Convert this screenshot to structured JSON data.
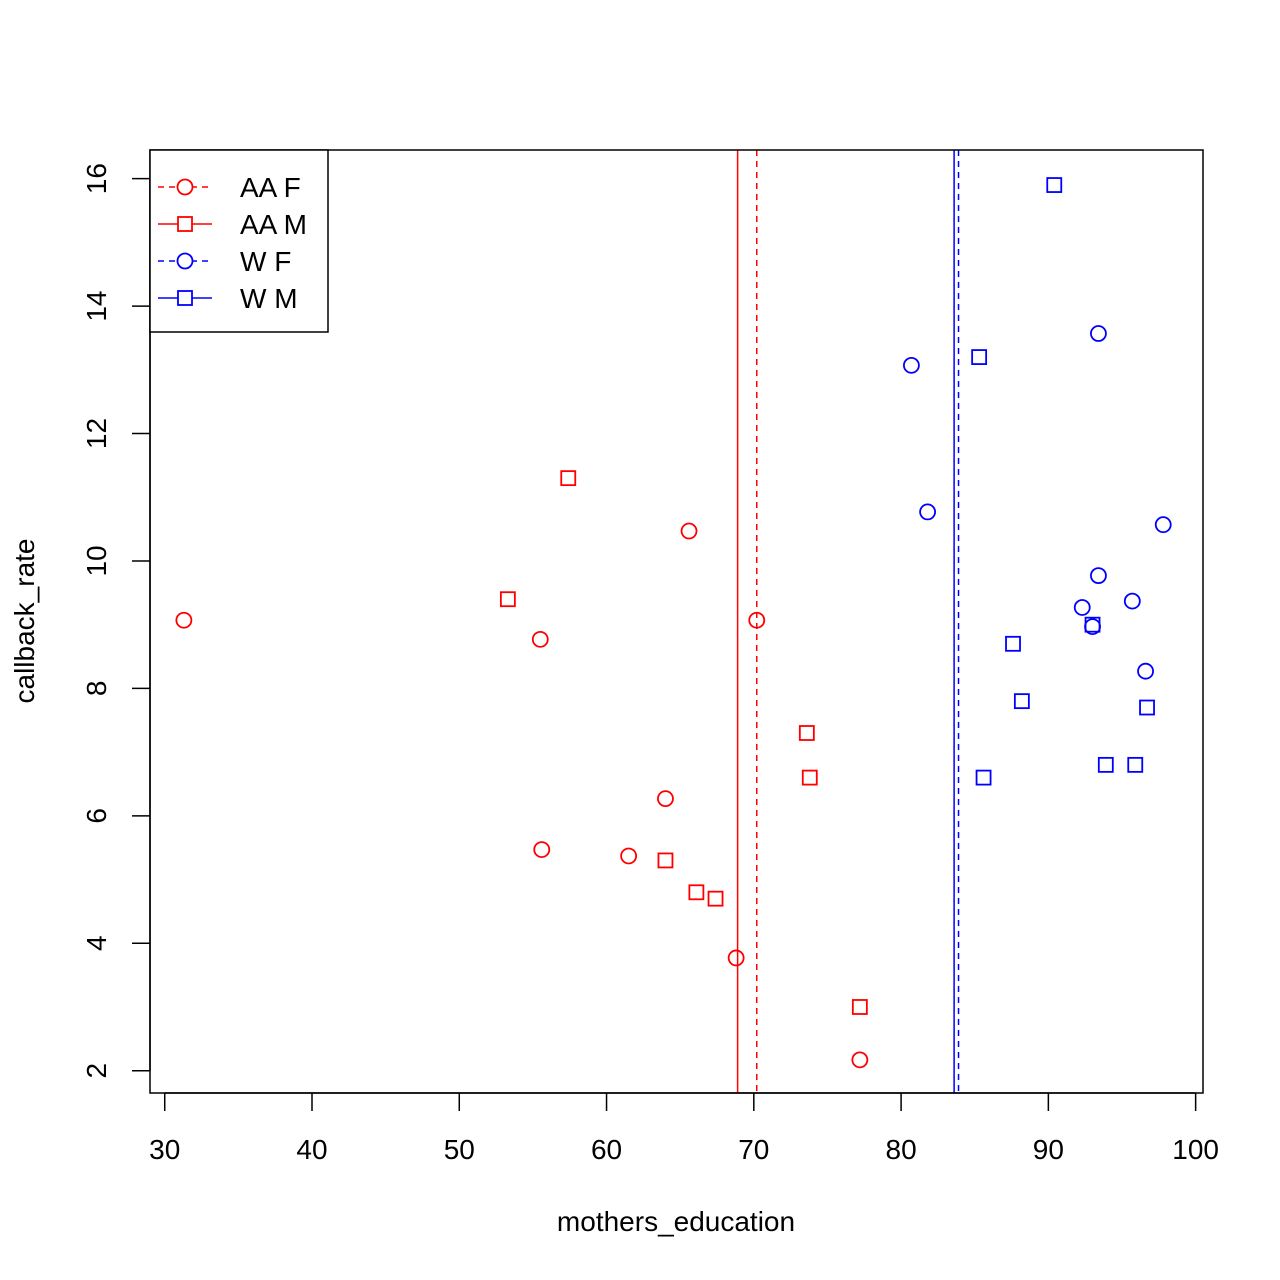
{
  "chart_data": {
    "type": "scatter",
    "title": "",
    "xlabel": "mothers_education",
    "ylabel": "callback_rate",
    "xlim": [
      29,
      100.5
    ],
    "ylim": [
      1.65,
      16.45
    ],
    "xticks": [
      30,
      40,
      50,
      60,
      70,
      80,
      90,
      100
    ],
    "yticks": [
      2,
      4,
      6,
      8,
      10,
      12,
      14,
      16
    ],
    "grid": false,
    "legend_position": "top-left",
    "series": [
      {
        "name": "AA F",
        "color": "#ff0000",
        "marker": "circle",
        "mean_line_style": "dashed",
        "mean_line_x": 70.2,
        "points": [
          {
            "x": 31.3,
            "y": 9.07
          },
          {
            "x": 55.5,
            "y": 8.77
          },
          {
            "x": 55.6,
            "y": 5.47
          },
          {
            "x": 61.5,
            "y": 5.37
          },
          {
            "x": 64.0,
            "y": 6.27
          },
          {
            "x": 65.6,
            "y": 10.47
          },
          {
            "x": 68.8,
            "y": 3.77
          },
          {
            "x": 70.2,
            "y": 9.07
          },
          {
            "x": 77.2,
            "y": 2.17
          }
        ]
      },
      {
        "name": "AA M",
        "color": "#ff0000",
        "marker": "square",
        "mean_line_style": "solid",
        "mean_line_x": 68.9,
        "points": [
          {
            "x": 53.3,
            "y": 9.4
          },
          {
            "x": 57.4,
            "y": 11.3
          },
          {
            "x": 64.0,
            "y": 5.3
          },
          {
            "x": 66.1,
            "y": 4.8
          },
          {
            "x": 67.4,
            "y": 4.7
          },
          {
            "x": 73.6,
            "y": 7.3
          },
          {
            "x": 73.8,
            "y": 6.6
          },
          {
            "x": 77.2,
            "y": 3.0
          }
        ]
      },
      {
        "name": "W F",
        "color": "#0000ff",
        "marker": "circle",
        "mean_line_style": "dashed",
        "mean_line_x": 83.9,
        "points": [
          {
            "x": 80.7,
            "y": 13.07
          },
          {
            "x": 81.8,
            "y": 10.77
          },
          {
            "x": 92.3,
            "y": 9.27
          },
          {
            "x": 93.0,
            "y": 8.97
          },
          {
            "x": 93.4,
            "y": 9.77
          },
          {
            "x": 93.4,
            "y": 13.57
          },
          {
            "x": 95.7,
            "y": 9.37
          },
          {
            "x": 96.6,
            "y": 8.27
          },
          {
            "x": 97.8,
            "y": 10.57
          }
        ]
      },
      {
        "name": "W M",
        "color": "#0000ff",
        "marker": "square",
        "mean_line_style": "solid",
        "mean_line_x": 83.6,
        "points": [
          {
            "x": 85.3,
            "y": 13.2
          },
          {
            "x": 85.6,
            "y": 6.6
          },
          {
            "x": 87.6,
            "y": 8.7
          },
          {
            "x": 88.2,
            "y": 7.8
          },
          {
            "x": 90.4,
            "y": 15.9
          },
          {
            "x": 93.0,
            "y": 9.0
          },
          {
            "x": 93.9,
            "y": 6.8
          },
          {
            "x": 95.9,
            "y": 6.8
          },
          {
            "x": 96.7,
            "y": 7.7
          }
        ]
      }
    ]
  }
}
